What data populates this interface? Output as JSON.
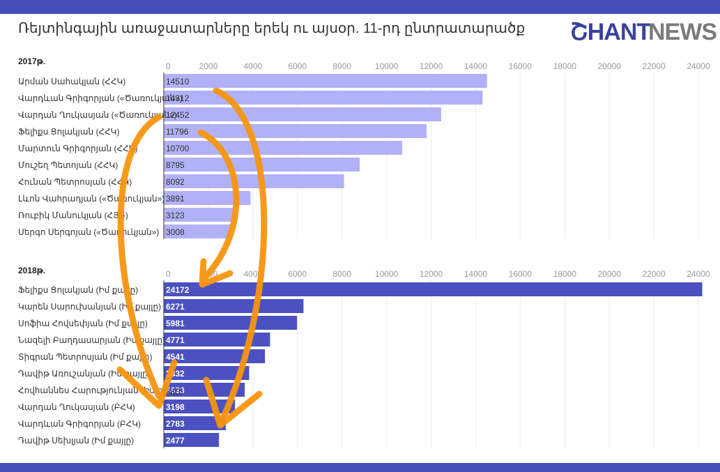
{
  "title": "Ռեյտինգային առաջատարները երեկ ու այսօր. 11-րդ ընտրատարածք",
  "logo": {
    "part1": "ՇHANT",
    "part2": "NEWS"
  },
  "colors": {
    "bar2017": "#b1b1f7",
    "bar2018": "#4b51c0",
    "band": "#464fbb",
    "arrow": "#f7950f",
    "grid": "#ececec"
  },
  "chart_data": [
    {
      "type": "bar",
      "orientation": "horizontal",
      "title": "2017թ.",
      "xlim": [
        0,
        24000
      ],
      "ticks": [
        0,
        2000,
        4000,
        6000,
        8000,
        10000,
        12000,
        14000,
        16000,
        18000,
        20000,
        22000,
        24000
      ],
      "categories": [
        "Արման Սահակյան (ՀՀԿ)",
        "Վարդևան Գրիգորյան («Ծառուկյան»)",
        "Վարդան Ղուկասյան («Ծառուկյան»)",
        "Ֆելիքս Ցոլակյան (ՀՀԿ)",
        "Մարտուն Գրիգորյան (ՀՀԿ)",
        "Մուշեղ Պետոյան (ՀՀԿ)",
        "Հունան Պետրոսյան (ՀՀԿ)",
        "Լևոն Վահրադյան («Ծառուկյան»)",
        "Ռուբիկ Մանուկյան (ՀՅԴ)",
        "Սերգո Սերգոյան («Ծառուկյան»)"
      ],
      "values": [
        14510,
        14312,
        12452,
        11796,
        10700,
        8795,
        8092,
        3891,
        3123,
        3008
      ],
      "value_labels": [
        "14510",
        "14312",
        "12452",
        "11796",
        "10700",
        "8795",
        "8092",
        "3891",
        "3123",
        "3008"
      ]
    },
    {
      "type": "bar",
      "orientation": "horizontal",
      "title": "2018թ.",
      "xlim": [
        0,
        24000
      ],
      "ticks": [
        0,
        2000,
        4000,
        6000,
        8000,
        10000,
        12000,
        14000,
        16000,
        18000,
        20000,
        22000,
        24000
      ],
      "categories": [
        "Ֆելիքս Ցոլակյան (Իմ քայլը)",
        "Կարեն Սարուխանյան (Իմ քայլը)",
        "Սոֆիա Հովսեփյան (Իմ քայլը)",
        "Նազելի Բաղդասարյան (Իմ քայլը)",
        "Տիգրան Պետրոսյան (Իմ քայլը)",
        "Դավիթ Առուշանյան (Իմ քայլը)",
        "Հովհաննես Հարությունյան (Իմ քայլը)",
        "Վարդան Ղուկասյան (ԲՀԿ)",
        "Վարդևան Գրիգորյան (ԲՀԿ)",
        "Դավիթ Սեխլյան (Իմ քայլը)"
      ],
      "values": [
        24172,
        6271,
        5981,
        4771,
        4541,
        3832,
        3633,
        3198,
        2783,
        2477
      ],
      "value_labels": [
        "24172",
        "6271",
        "5981",
        "4771",
        "4541",
        "3832",
        "3633",
        "3198",
        "2783",
        "2477"
      ]
    }
  ]
}
